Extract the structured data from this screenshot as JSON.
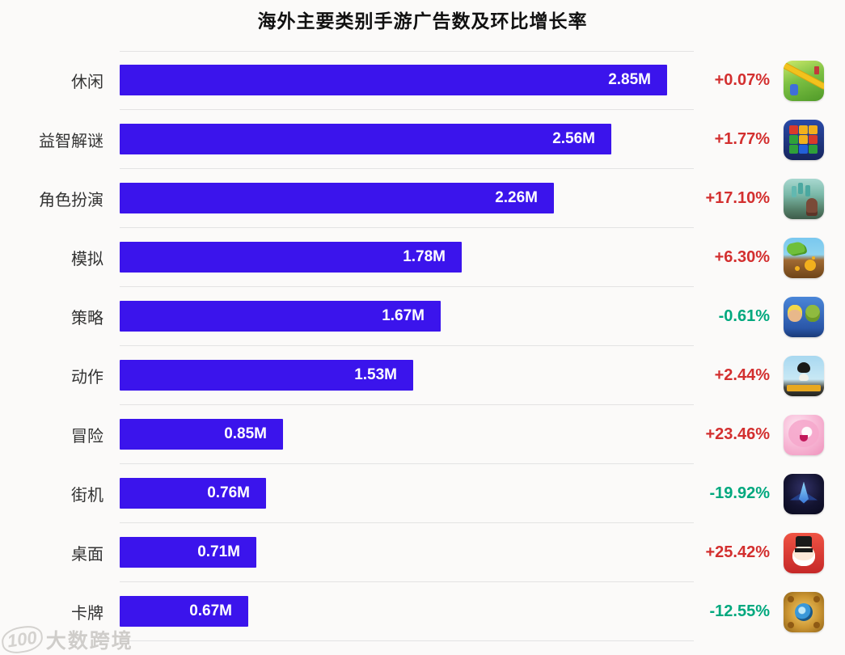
{
  "title": "海外主要类别手游广告数及环比增长率",
  "watermark": {
    "logo": "100",
    "text": "大数跨境"
  },
  "colors": {
    "bar": "#3B14EC",
    "up": "#D32F2F",
    "down": "#00A87E",
    "separator": "#E3E3E3",
    "background": "#FBFAF9"
  },
  "chart_data": {
    "type": "bar",
    "orientation": "horizontal",
    "title": "海外主要类别手游广告数及环比增长率",
    "unit": "M (millions of ads)",
    "max_value": 2.85,
    "value_axis_visible": false,
    "grid": false,
    "categories": [
      "休闲",
      "益智解谜",
      "角色扮演",
      "模拟",
      "策略",
      "动作",
      "冒险",
      "街机",
      "桌面",
      "卡牌"
    ],
    "values": [
      2.85,
      2.56,
      2.26,
      1.78,
      1.67,
      1.53,
      0.85,
      0.76,
      0.71,
      0.67
    ],
    "value_labels": [
      "2.85M",
      "2.56M",
      "2.26M",
      "1.78M",
      "1.67M",
      "1.53M",
      "0.85M",
      "0.76M",
      "0.71M",
      "0.67M"
    ],
    "growth_labels": [
      "+0.07%",
      "+1.77%",
      "+17.10%",
      "+6.30%",
      "-0.61%",
      "+2.44%",
      "+23.46%",
      "-19.92%",
      "+25.42%",
      "-12.55%"
    ],
    "growth_direction": [
      "up",
      "up",
      "up",
      "up",
      "down",
      "up",
      "up",
      "down",
      "up",
      "down"
    ],
    "icons": [
      "casual-garden-pin-puzzle-game-icon",
      "block-puzzle-game-icon",
      "fantasy-rpg-game-icon",
      "simulation-digging-dragon-game-icon",
      "strategy-clash-characters-game-icon",
      "action-battlegrounds-shooter-game-icon",
      "adventure-anime-girl-game-icon",
      "arcade-space-shooter-game-icon",
      "board-monopoly-tycoon-game-icon",
      "card-hearthstone-game-icon"
    ]
  }
}
